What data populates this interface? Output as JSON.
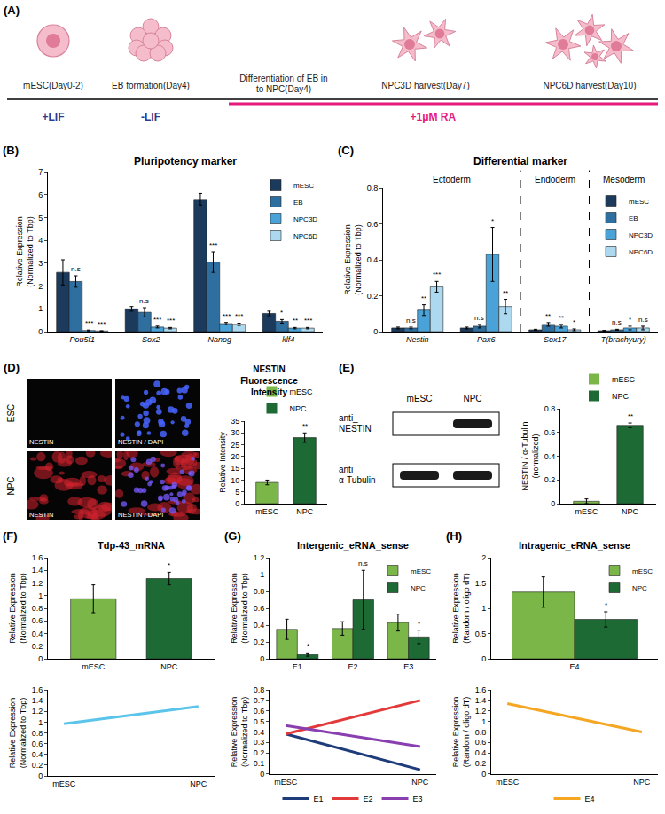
{
  "scheme": {
    "panel": "(A)",
    "timeline": [
      {
        "condition": "+LIF",
        "color": "#2b3a8c",
        "stages": [
          "mESC(Day0-2)"
        ]
      },
      {
        "condition": "-LIF",
        "color": "#2b3a8c",
        "stages": [
          "EB formation(Day4)"
        ]
      },
      {
        "condition": "+1μM RA",
        "color": "#e6197c",
        "stages": [
          "Differentiation of EB in to NPC(Day4)",
          "NPC3D harvest(Day7)",
          "NPC6D harvest(Day10)"
        ]
      }
    ]
  },
  "images": {
    "panel": "(D)",
    "rows": [
      "ESC",
      "NPC"
    ],
    "channels": [
      "NESTIN",
      "NESTIN / DAPI"
    ]
  },
  "blot": {
    "panel": "(E)",
    "lanes": [
      "mESC",
      "NPC"
    ],
    "rows": [
      "anti_ NESTIN",
      "anti_ α-Tubulin"
    ],
    "bands": [
      [
        "NPC"
      ],
      [
        "mESC",
        "NPC"
      ]
    ]
  },
  "chart_data": [
    {
      "panel": "(B)",
      "type": "bar",
      "title": "Pluripotency marker",
      "y_label": "Relative Expression (Normalized to Tbp)",
      "categories": [
        "Pou5f1",
        "Sox2",
        "Nanog",
        "klf4"
      ],
      "series": [
        {
          "name": "mESC",
          "color": "#1b3a5c",
          "values": [
            2.6,
            1.0,
            5.8,
            0.8
          ],
          "errors": [
            0.55,
            0.1,
            0.25,
            0.1
          ]
        },
        {
          "name": "EB",
          "color": "#2f6f9f",
          "values": [
            2.2,
            0.85,
            3.05,
            0.45
          ],
          "errors": [
            0.25,
            0.2,
            0.45,
            0.08
          ],
          "significance": [
            "n.s",
            "n.s",
            "***",
            "*"
          ]
        },
        {
          "name": "NPC3D",
          "color": "#4aa3d8",
          "values": [
            0.05,
            0.2,
            0.35,
            0.15
          ],
          "errors": [
            0.02,
            0.04,
            0.05,
            0.03
          ],
          "significance": [
            "***",
            "***",
            "***",
            "**"
          ]
        },
        {
          "name": "NPC6D",
          "color": "#acd8f0",
          "values": [
            0.03,
            0.15,
            0.32,
            0.15
          ],
          "errors": [
            0.01,
            0.03,
            0.05,
            0.03
          ],
          "significance": [
            "***",
            "***",
            "***",
            "***"
          ]
        }
      ],
      "ylim": [
        0,
        7
      ],
      "yticks": [
        0,
        1,
        2,
        3,
        4,
        5,
        6,
        7
      ],
      "legend": "top-right"
    },
    {
      "panel": "(C)",
      "type": "bar",
      "title": "Differential marker",
      "y_label": "Relative Expression (Normalized to Tbp)",
      "categories": [
        "Nestin",
        "Pax6",
        "Sox17",
        "T(brachyury)"
      ],
      "groups": [
        {
          "label": "Ectoderm",
          "categories": [
            "Nestin",
            "Pax6"
          ]
        },
        {
          "label": "Endoderm",
          "categories": [
            "Sox17"
          ]
        },
        {
          "label": "Mesoderm",
          "categories": [
            "T(brachyury)"
          ]
        }
      ],
      "series": [
        {
          "name": "mESC",
          "color": "#1b3a5c",
          "values": [
            0.02,
            0.02,
            0.01,
            0.005
          ],
          "errors": [
            0.005,
            0.005,
            0.003,
            0.002
          ]
        },
        {
          "name": "EB",
          "color": "#2f6f9f",
          "values": [
            0.02,
            0.03,
            0.04,
            0.01
          ],
          "errors": [
            0.005,
            0.01,
            0.01,
            0.003
          ],
          "significance": [
            "n.s",
            "n.s",
            "**",
            "n.s"
          ]
        },
        {
          "name": "NPC3D",
          "color": "#4aa3d8",
          "values": [
            0.12,
            0.43,
            0.03,
            0.02
          ],
          "errors": [
            0.03,
            0.15,
            0.01,
            0.01
          ],
          "significance": [
            "**",
            "*",
            "**",
            "*"
          ]
        },
        {
          "name": "NPC6D",
          "color": "#acd8f0",
          "values": [
            0.25,
            0.14,
            0.01,
            0.02
          ],
          "errors": [
            0.03,
            0.04,
            0.005,
            0.01
          ],
          "significance": [
            "***",
            "**",
            "*",
            "n.s"
          ]
        }
      ],
      "ylim": [
        0,
        0.8
      ],
      "yticks": [
        0,
        0.2,
        0.4,
        0.6,
        0.8
      ],
      "legend": "top-right"
    },
    {
      "type": "bar",
      "title": "NESTIN Fluorescence Intensity",
      "y_label": "Relative Intensity",
      "categories": [
        "mESC",
        "NPC"
      ],
      "values": [
        9,
        28
      ],
      "errors": [
        1,
        2
      ],
      "significance": [
        null,
        "**"
      ],
      "colors": [
        "#7ab648",
        "#1d6a35"
      ],
      "ylim": [
        0,
        35
      ],
      "yticks": [
        0,
        5,
        10,
        15,
        20,
        25,
        30,
        35
      ],
      "legend": "top"
    },
    {
      "type": "bar",
      "y_label": "NESTIN / α-Tubulin (normalized)",
      "categories": [
        "mESC",
        "NPC"
      ],
      "values": [
        0.02,
        0.66
      ],
      "errors": [
        0.02,
        0.02
      ],
      "significance": [
        null,
        "**"
      ],
      "colors": [
        "#7ab648",
        "#1d6a35"
      ],
      "ylim": [
        0,
        0.8
      ],
      "yticks": [
        0,
        0.2,
        0.4,
        0.6,
        0.8
      ],
      "legend": "top"
    },
    {
      "panel": "(F)",
      "type": "bar",
      "title": "Tdp-43_mRNA",
      "y_label": "Relative Expression (Normalized to Tbp)",
      "categories": [
        "mESC",
        "NPC"
      ],
      "values": [
        0.95,
        1.27
      ],
      "errors": [
        0.22,
        0.1
      ],
      "significance": [
        null,
        "*"
      ],
      "colors": [
        "#7ab648",
        "#1d6a35"
      ],
      "ylim": [
        0,
        1.6
      ],
      "yticks": [
        0,
        0.2,
        0.4,
        0.6,
        0.8,
        1,
        1.2,
        1.4,
        1.6
      ]
    },
    {
      "type": "line",
      "y_label": "Relative Expression (Normalized to Tbp)",
      "categories": [
        "mESC",
        "NPC"
      ],
      "series": [
        {
          "color": "#5bc4ea",
          "values": [
            0.97,
            1.29
          ]
        }
      ],
      "ylim": [
        0,
        1.6
      ],
      "yticks": [
        0,
        0.2,
        0.4,
        0.6,
        0.8,
        1,
        1.2,
        1.4,
        1.6
      ]
    },
    {
      "panel": "(G)",
      "type": "bar",
      "title": "Intergenic_eRNA_sense",
      "y_label": "Relative Expression (Normalized to Tbp)",
      "categories": [
        "E1",
        "E2",
        "E3"
      ],
      "series": [
        {
          "name": "mESC",
          "color": "#7ab648",
          "values": [
            0.35,
            0.36,
            0.43
          ],
          "errors": [
            0.12,
            0.08,
            0.1
          ]
        },
        {
          "name": "NPC",
          "color": "#1d6a35",
          "values": [
            0.05,
            0.7,
            0.26
          ],
          "errors": [
            0.02,
            0.35,
            0.08
          ],
          "significance": [
            "*",
            "n.s",
            "*"
          ]
        }
      ],
      "ylim": [
        0,
        1.2
      ],
      "yticks": [
        0,
        0.2,
        0.4,
        0.6,
        0.8,
        1,
        1.2
      ],
      "legend": "top-right"
    },
    {
      "type": "line",
      "y_label": "Relative Expression (Normalized to Tbp)",
      "categories": [
        "mESC",
        "NPC"
      ],
      "series": [
        {
          "name": "E1",
          "color": "#1f3c7a",
          "values": [
            0.38,
            0.04
          ]
        },
        {
          "name": "E2",
          "color": "#e23a3a",
          "values": [
            0.38,
            0.7
          ]
        },
        {
          "name": "E3",
          "color": "#8a3fb0",
          "values": [
            0.46,
            0.26
          ]
        }
      ],
      "ylim": [
        0,
        0.8
      ],
      "yticks": [
        0,
        0.1,
        0.2,
        0.3,
        0.4,
        0.5,
        0.6,
        0.7,
        0.8
      ],
      "legend": "bottom"
    },
    {
      "panel": "(H)",
      "type": "bar",
      "title": "Intragenic_eRNA_sense",
      "y_label": "Relative Expression (Random / oligo dT)",
      "categories": [
        "E4"
      ],
      "series": [
        {
          "name": "mESC",
          "color": "#7ab648",
          "values": [
            1.32
          ],
          "errors": [
            0.3
          ]
        },
        {
          "name": "NPC",
          "color": "#1d6a35",
          "values": [
            0.78
          ],
          "errors": [
            0.15
          ],
          "significance": [
            "*"
          ]
        }
      ],
      "ylim": [
        0,
        2
      ],
      "yticks": [
        0,
        0.5,
        1,
        1.5,
        2
      ],
      "legend": "top-right"
    },
    {
      "type": "line",
      "y_label": "Relative Expression (Random / oligo dT)",
      "categories": [
        "mESC",
        "NPC"
      ],
      "series": [
        {
          "name": "E4",
          "color": "#f5a623",
          "values": [
            1.34,
            0.8
          ]
        }
      ],
      "ylim": [
        0,
        1.6
      ],
      "yticks": [
        0,
        0.2,
        0.4,
        0.6,
        0.8,
        1,
        1.2,
        1.4,
        1.6
      ],
      "legend": "bottom"
    }
  ]
}
